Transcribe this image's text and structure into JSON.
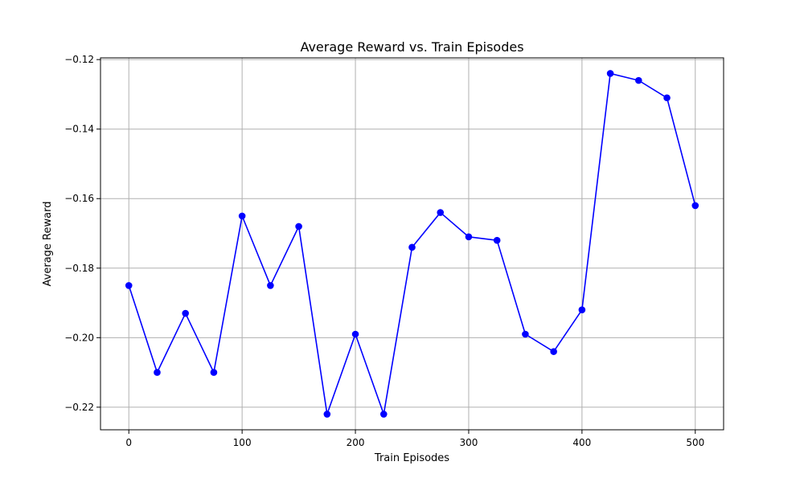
{
  "chart_data": {
    "type": "line",
    "title": "Average Reward vs. Train Episodes",
    "xlabel": "Train Episodes",
    "ylabel": "Average Reward",
    "xlim": [
      -25,
      525
    ],
    "ylim": [
      -0.2265,
      -0.1195
    ],
    "x_ticks": [
      0,
      100,
      200,
      300,
      400,
      500
    ],
    "x_tick_labels": [
      "0",
      "100",
      "200",
      "300",
      "400",
      "500"
    ],
    "y_ticks": [
      -0.12,
      -0.14,
      -0.16,
      -0.18,
      -0.2,
      -0.22
    ],
    "y_tick_labels": [
      "−0.12",
      "−0.14",
      "−0.16",
      "−0.18",
      "−0.20",
      "−0.22"
    ],
    "grid": true,
    "series": [
      {
        "color": "#0000ff",
        "marker": "circle",
        "x": [
          0,
          25,
          50,
          75,
          100,
          125,
          150,
          175,
          200,
          225,
          250,
          275,
          300,
          325,
          350,
          375,
          400,
          425,
          450,
          475,
          500
        ],
        "y": [
          -0.185,
          -0.21,
          -0.193,
          -0.21,
          -0.165,
          -0.185,
          -0.168,
          -0.222,
          -0.199,
          -0.222,
          -0.174,
          -0.164,
          -0.171,
          -0.172,
          -0.199,
          -0.204,
          -0.192,
          -0.124,
          -0.126,
          -0.131,
          -0.162
        ]
      }
    ]
  }
}
